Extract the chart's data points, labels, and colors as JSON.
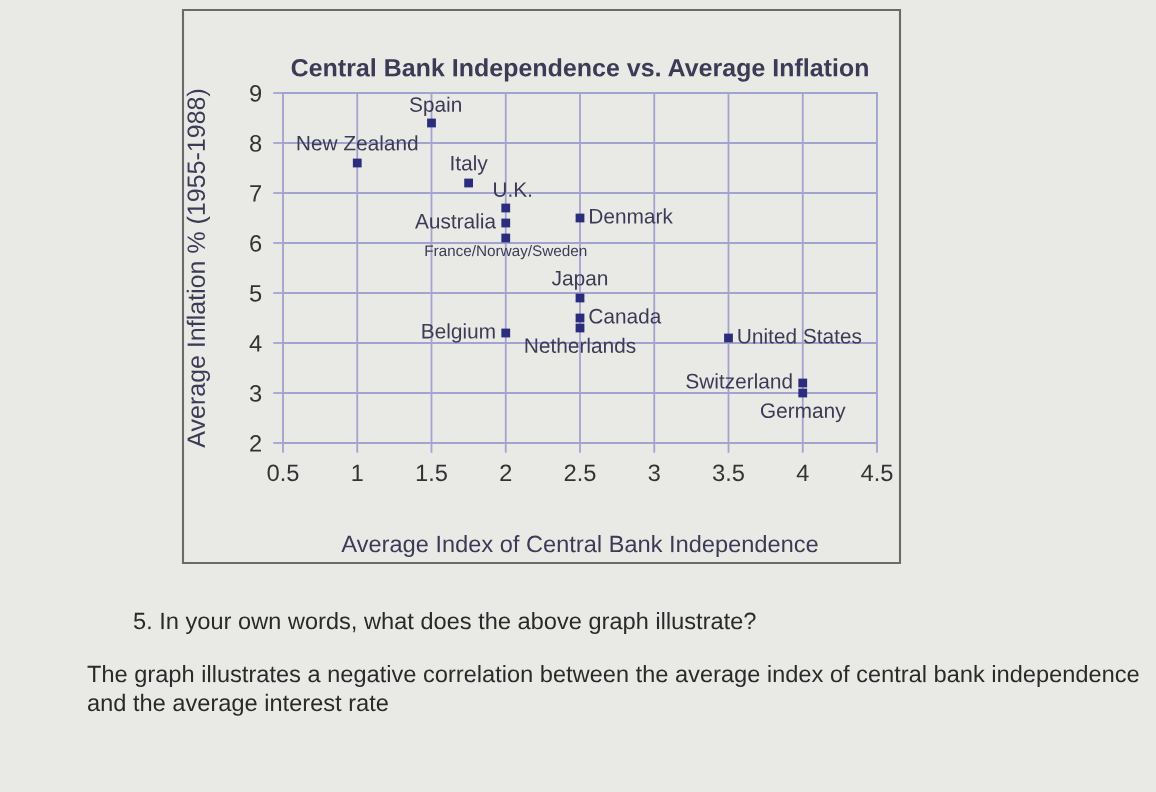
{
  "chart_data": {
    "type": "scatter",
    "title": "Central Bank Independence vs. Average Inflation",
    "xlabel": "Average Index of Central Bank Independence",
    "ylabel": "Average Inflation % (1955-1988)",
    "x": [
      1.5,
      1,
      1.75,
      2,
      2,
      2,
      2.5,
      2.5,
      2.5,
      2.5,
      2,
      3.5,
      4,
      4
    ],
    "values": [
      8.4,
      7.6,
      7.2,
      6.7,
      6.4,
      6.1,
      6.5,
      4.9,
      4.5,
      4.3,
      4.2,
      4.1,
      3.2,
      3.0
    ],
    "color": "#2b2d7c",
    "marker": "square",
    "xlim": [
      0.5,
      4.5
    ],
    "xticks": [
      0.5,
      1,
      1.5,
      2,
      2.5,
      3,
      3.5,
      4,
      4.5
    ],
    "ylim": [
      2,
      9
    ],
    "yticks": [
      2,
      3,
      4,
      5,
      6,
      7,
      8,
      9
    ],
    "grid": true,
    "annotations": [
      {
        "text": "Spain",
        "x": 1.5,
        "y": 8.4
      },
      {
        "text": "New Zealand",
        "x": 1,
        "y": 7.6
      },
      {
        "text": "Italy",
        "x": 1.75,
        "y": 7.2
      },
      {
        "text": "U.K.",
        "x": 2,
        "y": 6.7
      },
      {
        "text": "Australia",
        "x": 2,
        "y": 6.4
      },
      {
        "text": "France/Norway/Sweden",
        "x": 2,
        "y": 6.1
      },
      {
        "text": "Denmark",
        "x": 2.5,
        "y": 6.5
      },
      {
        "text": "Japan",
        "x": 2.5,
        "y": 4.9
      },
      {
        "text": "Canada",
        "x": 2.5,
        "y": 4.5
      },
      {
        "text": "Netherlands",
        "x": 2.5,
        "y": 4.3
      },
      {
        "text": "Belgium",
        "x": 2,
        "y": 4.2
      },
      {
        "text": "United States",
        "x": 3.5,
        "y": 4.1
      },
      {
        "text": "Switzerland",
        "x": 4,
        "y": 3.2
      },
      {
        "text": "Germany",
        "x": 4,
        "y": 3.0
      },
      "5. In your own words, what does the above graph illustrate?",
      "The graph illustrates a negative correlation between the average index of central bank independence and the average interest rate"
    ]
  }
}
